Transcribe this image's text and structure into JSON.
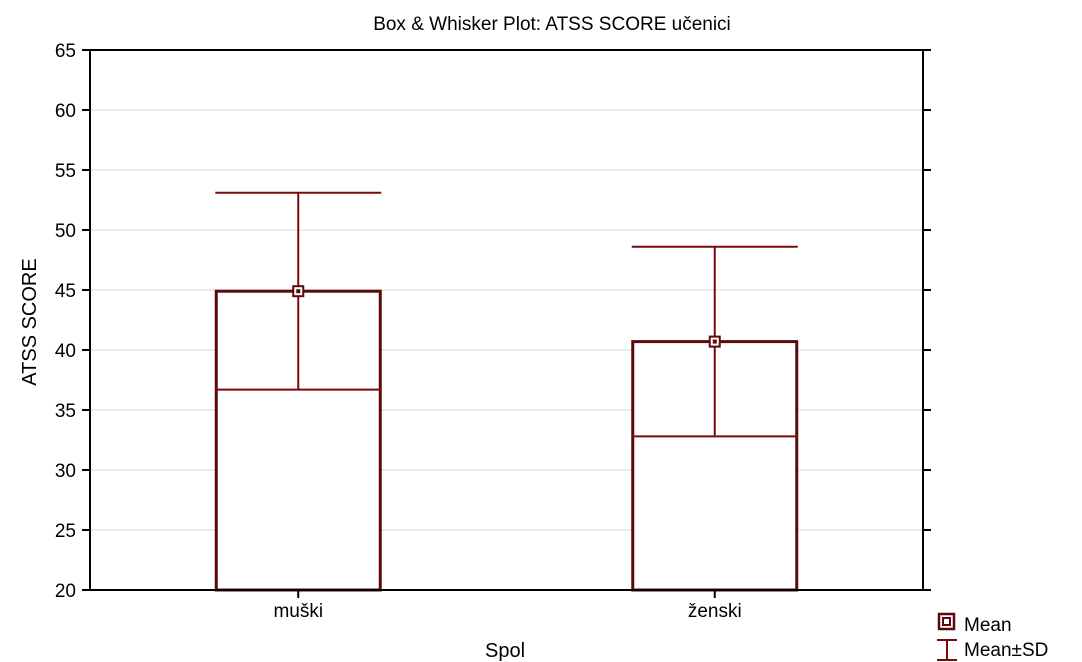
{
  "colors": {
    "box": "#5a0a0a",
    "whisker": "#7a0a0a",
    "grid": "#d9d9d9",
    "frame": "#000000",
    "background": "#ffffff"
  },
  "chart_data": {
    "type": "box",
    "title": "Box & Whisker Plot: ATSS SCORE učenici",
    "xlabel": "Spol",
    "ylabel": "ATSS SCORE",
    "ylim": [
      20,
      65
    ],
    "yticks": [
      20,
      25,
      30,
      35,
      40,
      45,
      50,
      55,
      60,
      65
    ],
    "grid": true,
    "categories": [
      "muški",
      "ženski"
    ],
    "series": [
      {
        "mean": [
          44.9,
          40.7
        ],
        "sd": [
          8.2,
          7.9
        ],
        "box_low": [
          20,
          20
        ],
        "box_high": [
          44.9,
          40.7
        ],
        "whisker_low": [
          36.7,
          32.8
        ],
        "whisker_high": [
          53.1,
          48.6
        ]
      }
    ],
    "legend": {
      "position": "bottom-right",
      "entries": [
        {
          "label": "Mean",
          "symbol": "square-marker"
        },
        {
          "label": "Mean±SD",
          "symbol": "whisker-icon"
        }
      ]
    }
  }
}
